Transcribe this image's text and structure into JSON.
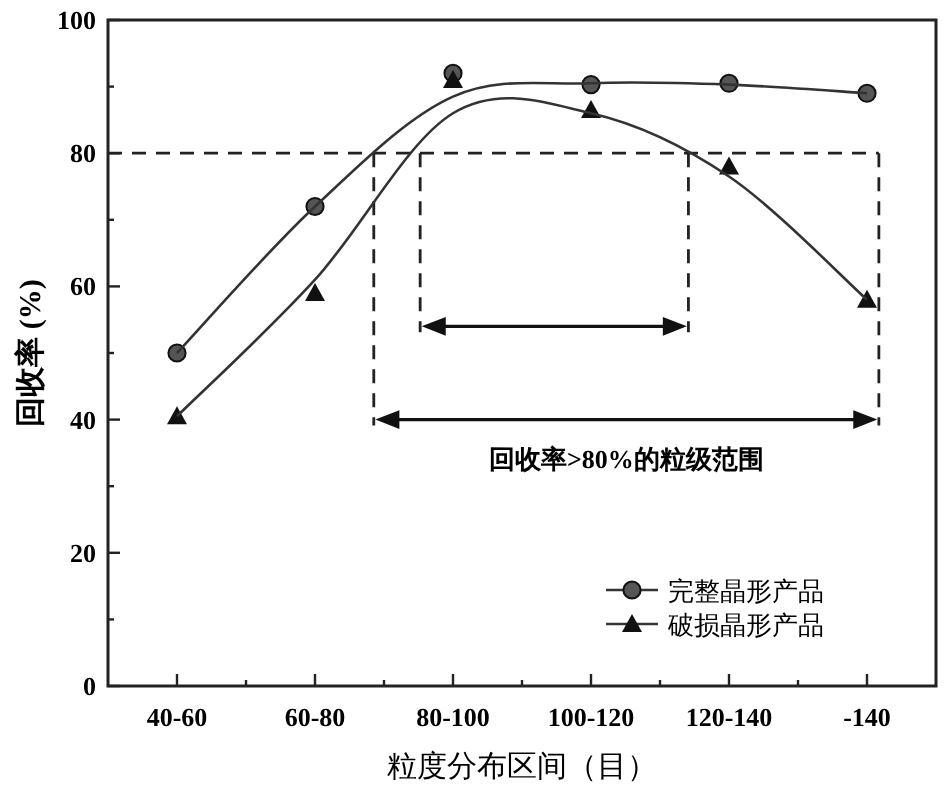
{
  "chart_data": {
    "type": "line",
    "xlabel": "粒度分布区间（目）",
    "ylabel": "回收率 (%)",
    "categories": [
      "40-60",
      "60-80",
      "80-100",
      "100-120",
      "120-140",
      "-140"
    ],
    "ylim": [
      0,
      100
    ],
    "yticks": [
      0,
      {
        "value": 10,
        "label": null
      },
      20,
      {
        "value": 30,
        "label": null
      },
      40,
      {
        "value": 50,
        "label": null
      },
      60,
      {
        "value": 70,
        "label": null
      },
      80,
      {
        "value": 90,
        "label": null
      },
      100
    ],
    "series": [
      {
        "name": "完整晶形产品",
        "type": "scatter",
        "marker": "circle",
        "color": "#555555",
        "values": [
          50,
          72,
          92,
          90.3,
          90.5,
          89
        ]
      },
      {
        "name": "破损晶形产品",
        "type": "scatter",
        "marker": "triangle",
        "color": "#111111",
        "values": [
          40.5,
          59,
          91,
          86.5,
          78,
          58
        ]
      },
      {
        "color": "#333333",
        "values": [
          50,
          72,
          88.5,
          90.5,
          90.3,
          89
        ]
      },
      {
        "color": "#333333",
        "values": [
          40.5,
          61,
          86,
          86,
          76.5,
          58
        ]
      }
    ],
    "ref_lines": [
      {
        "axis": "y",
        "value": 80,
        "line_style": "dashed"
      }
    ],
    "annotations": [
      "回收率>80%的粒级范围"
    ],
    "legend": "bottom right"
  }
}
